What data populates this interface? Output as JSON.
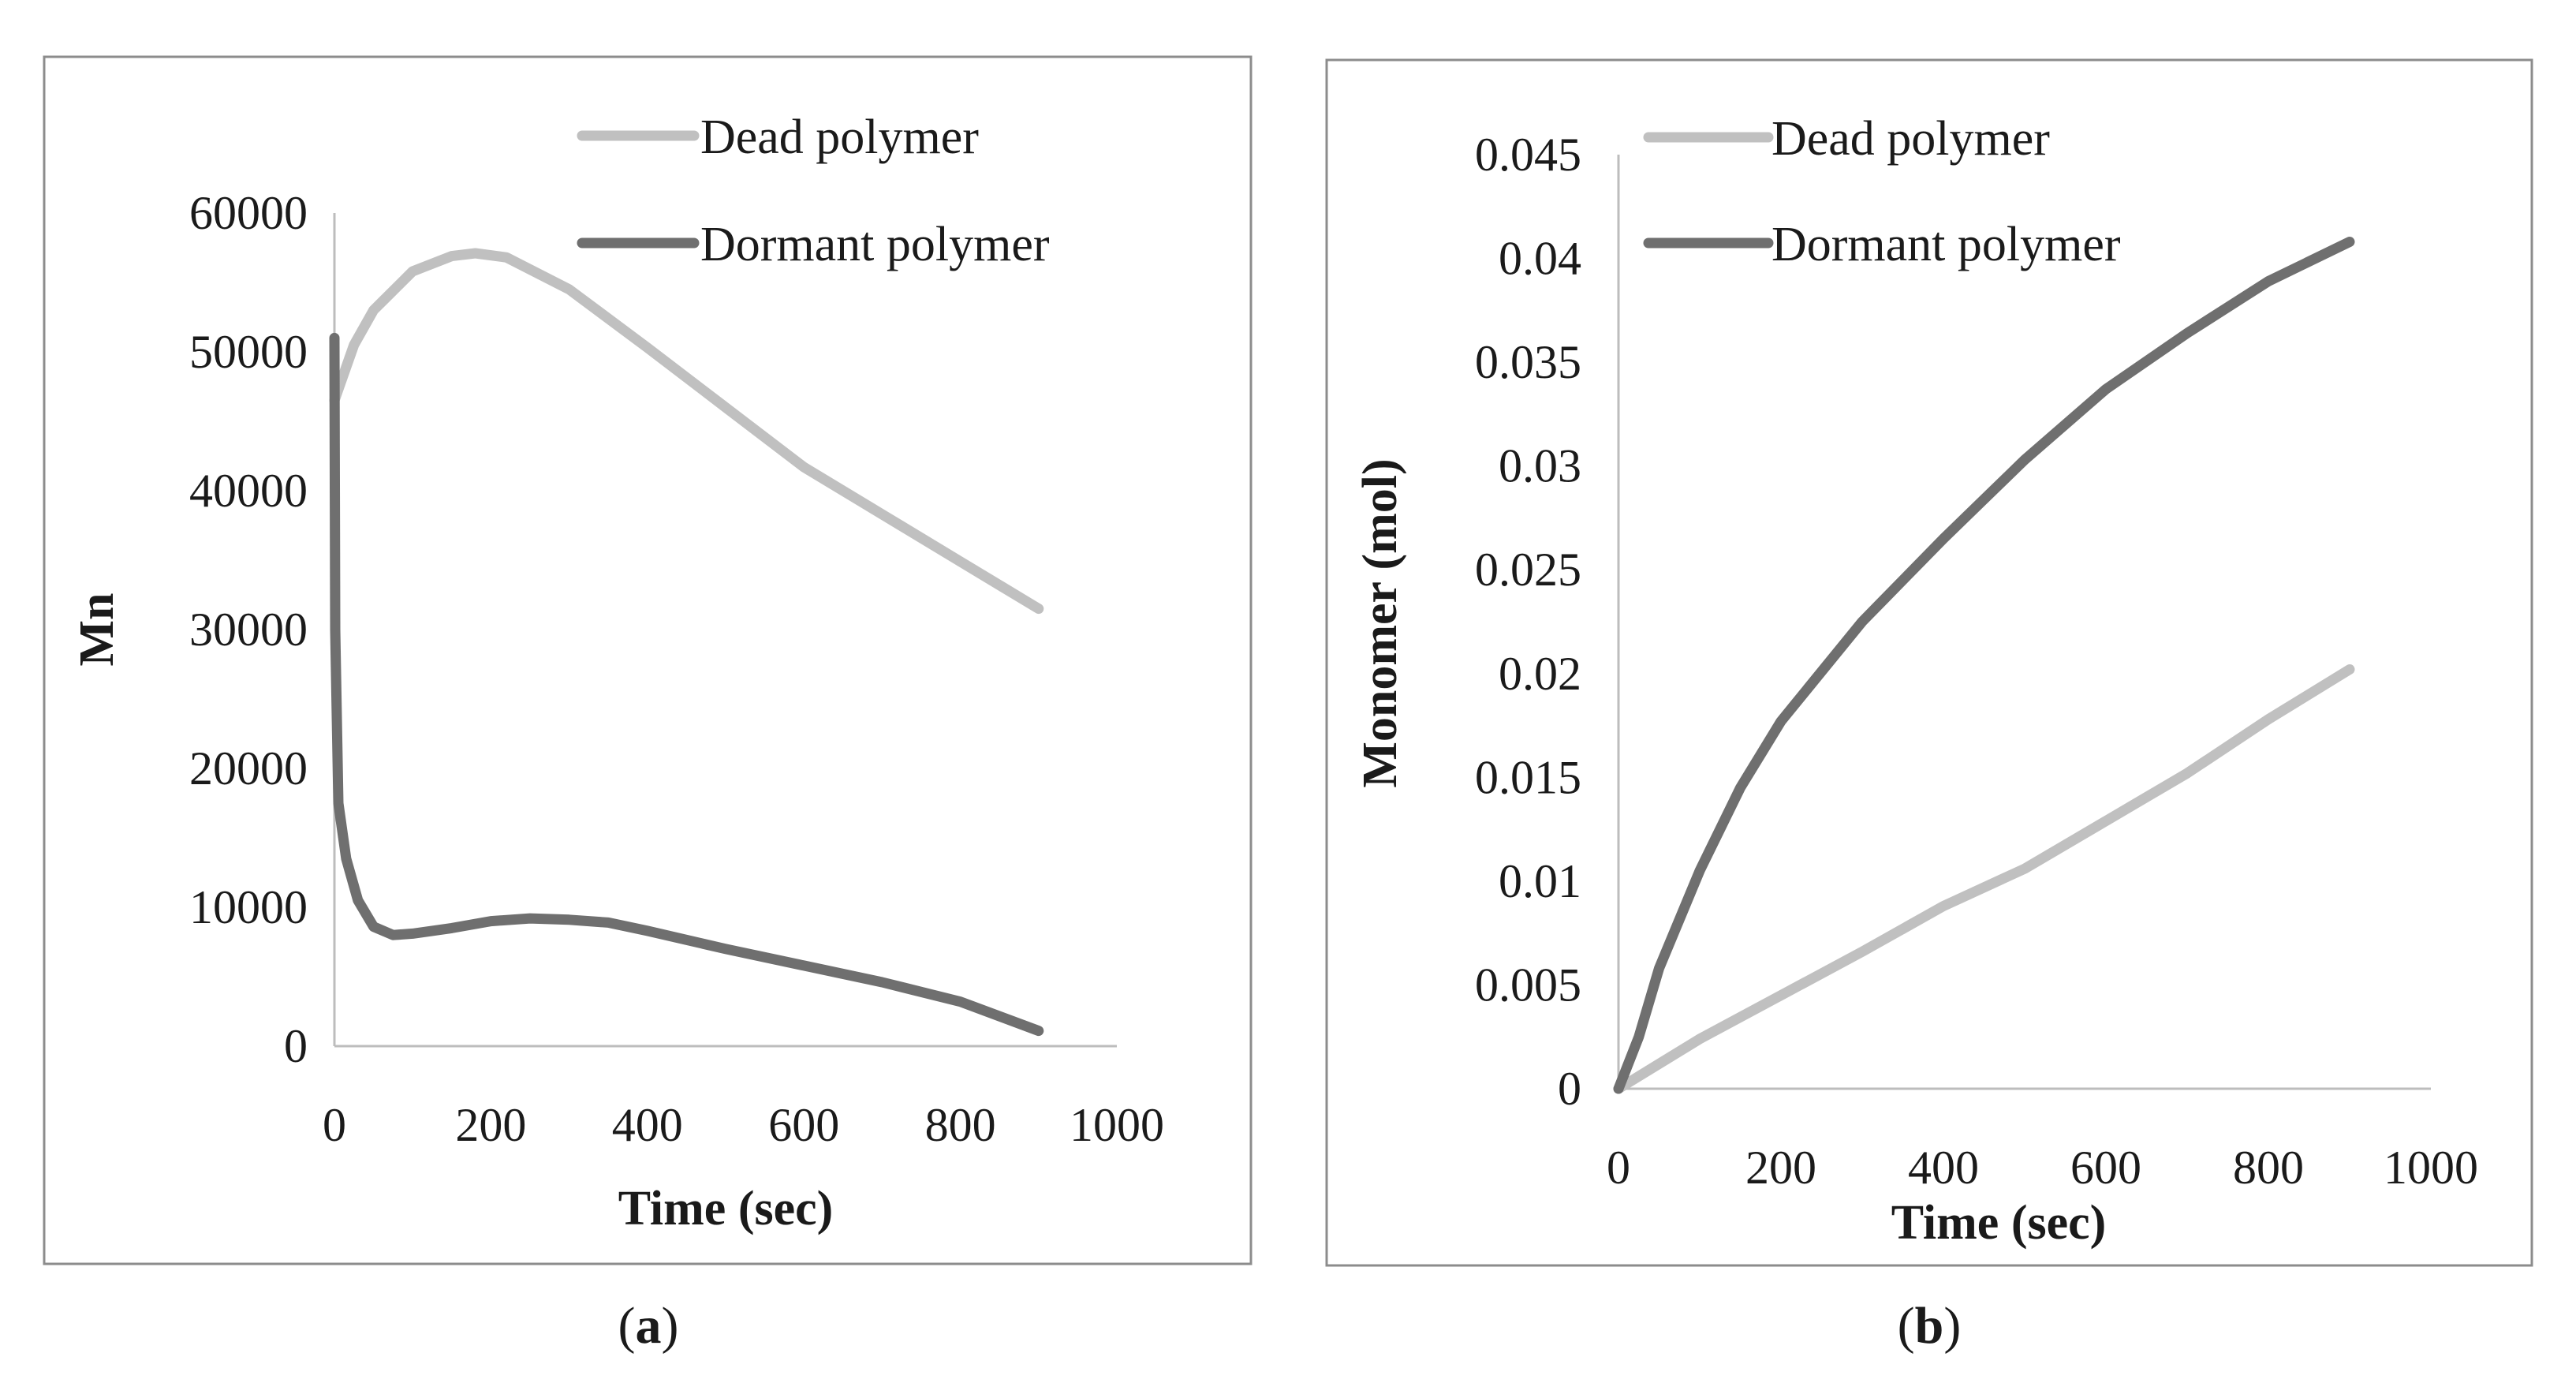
{
  "colors": {
    "dead": "#c0c0c0",
    "dormant": "#6f6f6f",
    "axis": "#bdbdbd",
    "frame": "#8c8c8c"
  },
  "chart_data": [
    {
      "id": "a",
      "type": "line",
      "title": "",
      "xlabel": "Time (sec)",
      "ylabel": "Mn",
      "xlim": [
        0,
        1000
      ],
      "ylim": [
        0,
        60000
      ],
      "xticks": [
        0,
        200,
        400,
        600,
        800,
        1000
      ],
      "xtick_labels": [
        "0",
        "200",
        "400",
        "600",
        "800",
        "1000"
      ],
      "yticks": [
        0,
        10000,
        20000,
        30000,
        40000,
        50000,
        60000
      ],
      "ytick_labels": [
        "0",
        "10000",
        "20000",
        "30000",
        "40000",
        "50000",
        "60000"
      ],
      "legend_position": "top-right",
      "caption_open": "(",
      "caption_letter": "a",
      "caption_close": ")",
      "series": [
        {
          "name": "Dead polymer",
          "color_key": "dead",
          "x": [
            0,
            25,
            50,
            100,
            150,
            180,
            220,
            300,
            400,
            500,
            600,
            700,
            800,
            900
          ],
          "y": [
            46500,
            50500,
            53000,
            55800,
            56900,
            57100,
            56800,
            54500,
            50300,
            46000,
            41700,
            38300,
            34900,
            31500
          ]
        },
        {
          "name": "Dormant polymer",
          "color_key": "dormant",
          "x": [
            0,
            1,
            5,
            15,
            30,
            50,
            75,
            100,
            150,
            200,
            250,
            300,
            350,
            400,
            500,
            600,
            700,
            800,
            900
          ],
          "y": [
            51000,
            30000,
            17500,
            13500,
            10500,
            8600,
            8000,
            8100,
            8500,
            9000,
            9200,
            9100,
            8900,
            8300,
            7000,
            5800,
            4600,
            3200,
            1100
          ]
        }
      ]
    },
    {
      "id": "b",
      "type": "line",
      "title": "",
      "xlabel": "Time (sec)",
      "ylabel": "Monomer (mol)",
      "xlim": [
        0,
        1000
      ],
      "ylim": [
        0,
        0.045
      ],
      "xticks": [
        0,
        200,
        400,
        600,
        800,
        1000
      ],
      "xtick_labels": [
        "0",
        "200",
        "400",
        "600",
        "800",
        "1000"
      ],
      "yticks": [
        0,
        0.005,
        0.01,
        0.015,
        0.02,
        0.025,
        0.03,
        0.035,
        0.04,
        0.045
      ],
      "ytick_labels": [
        "0",
        "0.005",
        "0.01",
        "0.015",
        "0.02",
        "0.025",
        "0.03",
        "0.035",
        "0.04",
        "0.045"
      ],
      "legend_position": "top-left",
      "caption_open": "(",
      "caption_letter": "b",
      "caption_close": ")",
      "series": [
        {
          "name": "Dead polymer",
          "color_key": "dead",
          "x": [
            0,
            50,
            100,
            200,
            300,
            400,
            500,
            600,
            700,
            800,
            900
          ],
          "y": [
            0,
            0.0012,
            0.0024,
            0.0045,
            0.0066,
            0.0088,
            0.0106,
            0.0129,
            0.0152,
            0.0178,
            0.0202
          ]
        },
        {
          "name": "Dormant polymer",
          "color_key": "dormant",
          "x": [
            0,
            25,
            50,
            100,
            150,
            200,
            300,
            400,
            500,
            600,
            700,
            800,
            900
          ],
          "y": [
            0,
            0.0025,
            0.0058,
            0.0105,
            0.0145,
            0.0177,
            0.0225,
            0.0265,
            0.0303,
            0.0337,
            0.0364,
            0.0389,
            0.0408
          ]
        }
      ]
    }
  ]
}
